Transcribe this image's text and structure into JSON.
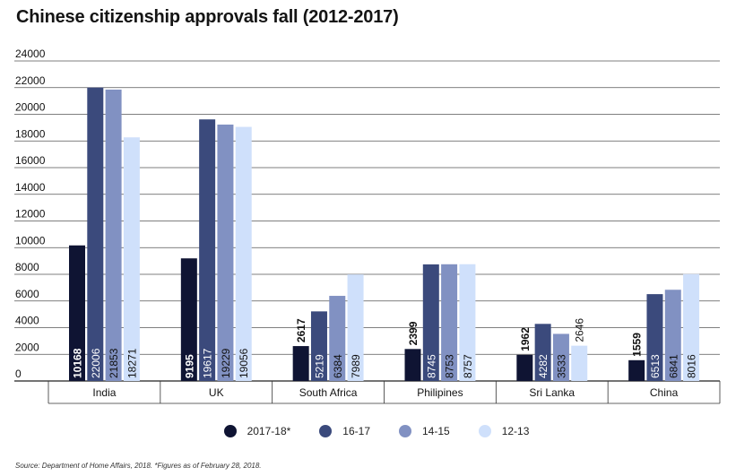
{
  "title": "Chinese citizenship approvals fall (2012-2017)",
  "source": "Source: Department of Home Affairs, 2018. *Figures as of February 28, 2018.",
  "colors": {
    "2017-18*": "#0f1433",
    "16-17": "#3b4a7c",
    "14-15": "#8191c2",
    "12-13": "#cfe0fb"
  },
  "chart_data": {
    "type": "bar",
    "title": "Chinese citizenship approvals fall (2012-2017)",
    "categories": [
      "India",
      "UK",
      "South Africa",
      "Philipines",
      "Sri Lanka",
      "China"
    ],
    "series": [
      {
        "name": "2017-18*",
        "values": [
          10168,
          9195,
          2617,
          2399,
          1962,
          1559
        ]
      },
      {
        "name": "16-17",
        "values": [
          22006,
          19617,
          5219,
          8745,
          4282,
          6513
        ]
      },
      {
        "name": "14-15",
        "values": [
          21853,
          19229,
          6384,
          8753,
          3533,
          6841
        ]
      },
      {
        "name": "12-13",
        "values": [
          18271,
          19056,
          7989,
          8757,
          2646,
          8016
        ]
      }
    ],
    "ylim": [
      0,
      24000
    ],
    "yticks": [
      0,
      2000,
      4000,
      6000,
      8000,
      10000,
      12000,
      14000,
      16000,
      18000,
      20000,
      22000,
      24000
    ],
    "xlabel": "",
    "ylabel": "",
    "grid": true,
    "legend_position": "bottom"
  }
}
